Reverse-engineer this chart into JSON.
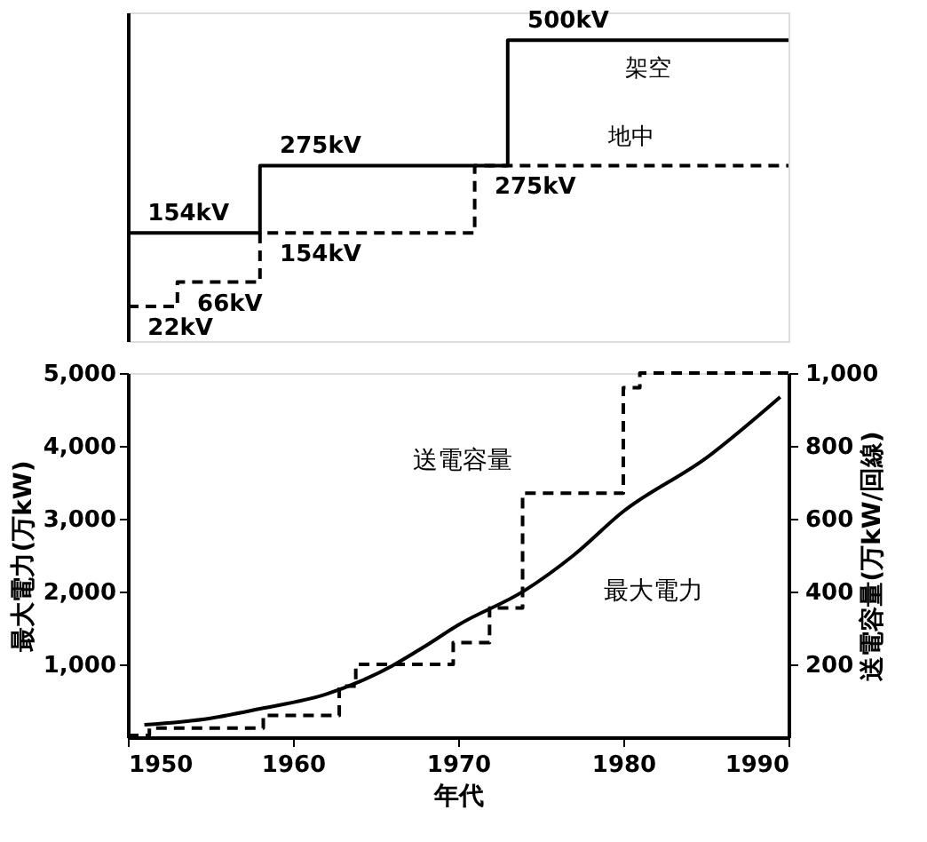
{
  "chart_data": [
    {
      "type": "step",
      "xlim": [
        1950,
        1990
      ],
      "tick_labels": false,
      "grid": false,
      "series": [
        {
          "name": "架空",
          "type": "step",
          "color": "#000000",
          "line_style": "solid",
          "x": [
            1950,
            1958,
            1973,
            1990
          ],
          "values": [
            154,
            275,
            500,
            500
          ],
          "value_labels": [
            "154kV",
            "275kV",
            "500kV",
            null
          ]
        },
        {
          "name": "地中",
          "type": "step",
          "color": "#000000",
          "line_style": "dashed",
          "x": [
            1950,
            1953,
            1958,
            1971,
            1990
          ],
          "values": [
            22,
            66,
            154,
            275,
            275
          ],
          "value_labels": [
            "22kV",
            "66kV",
            "154kV",
            "275kV",
            null
          ]
        }
      ]
    },
    {
      "type": "line",
      "xlabel": "年代",
      "ylabel": "最大電力(万kW)",
      "y2label": "送電容量(万kW/回線)",
      "xlim": [
        1950,
        1990
      ],
      "xticks": [
        1950,
        1960,
        1970,
        1980,
        1990
      ],
      "ylim": [
        0,
        5000
      ],
      "yticks": [
        {
          "value": 1000,
          "label": "1,000"
        },
        {
          "value": 2000,
          "label": "2,000"
        },
        {
          "value": 3000,
          "label": "3,000"
        },
        {
          "value": 4000,
          "label": "4,000"
        },
        {
          "value": 5000,
          "label": "5,000"
        }
      ],
      "y2lim": [
        0,
        1000
      ],
      "y2ticks": [
        200,
        400,
        600,
        800,
        {
          "value": 1000,
          "label": "1,000"
        }
      ],
      "grid": false,
      "series": [
        {
          "name": "最大電力",
          "type": "line",
          "color": "#000000",
          "line_style": "solid",
          "x": [
            1951,
            1955,
            1958,
            1962,
            1964,
            1966,
            1968,
            1970,
            1974,
            1977,
            1980,
            1985,
            1989.5
          ],
          "values": [
            170,
            260,
            390,
            590,
            760,
            980,
            1250,
            1540,
            2010,
            2500,
            3100,
            3830,
            4670
          ]
        },
        {
          "name": "送電容量",
          "type": "step",
          "axis": "y2",
          "color": "#000000",
          "line_style": "dashed",
          "x": [
            1950,
            1951.3,
            1958.2,
            1962.8,
            1963.8,
            1969.7,
            1971.9,
            1973.9,
            1980,
            1981,
            1990
          ],
          "values": [
            5,
            25,
            60,
            140,
            200,
            260,
            355,
            670,
            960,
            1000,
            1000
          ]
        }
      ]
    }
  ]
}
